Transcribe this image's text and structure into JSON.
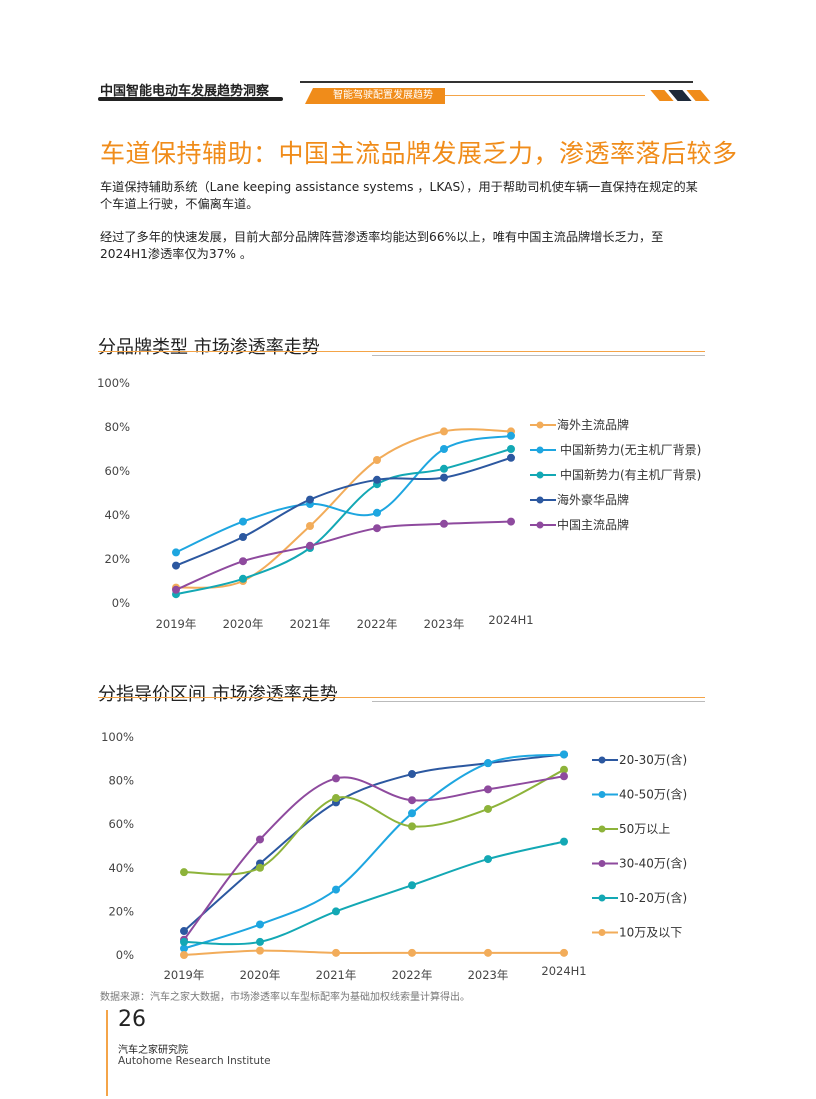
{
  "header": {
    "report_title": "中国智能电动车发展趋势洞察",
    "section_tag": "智能驾驶配置发展趋势"
  },
  "title": "车道保持辅助：中国主流品牌发展乏力，渗透率落后较多",
  "paragraphs": [
    "车道保持辅助系统（Lane keeping assistance systems ，LKAS），用于帮助司机使车辆一直保持在规定的某个车道上行驶，不偏离车道。",
    "经过了多年的快速发展，目前大部分品牌阵营渗透率均能达到66%以上，唯有中国主流品牌增长乏力，至2024H1渗透率仅为37% 。"
  ],
  "chart_data": [
    {
      "type": "line",
      "title": "分品牌类型  市场渗透率走势",
      "categories": [
        "2019年",
        "2020年",
        "2021年",
        "2022年",
        "2023年",
        "2024H1"
      ],
      "ylim": [
        0,
        100
      ],
      "yticks": [
        "0%",
        "20%",
        "40%",
        "60%",
        "80%",
        "100%"
      ],
      "legend": "right",
      "series": [
        {
          "name": "海外主流品牌",
          "color": "#f2ac5a",
          "values": [
            7,
            10,
            35,
            65,
            78,
            78
          ]
        },
        {
          "name": "中国新势力(无主机厂背景)",
          "color": "#1ea6e0",
          "values": [
            23,
            37,
            45,
            41,
            70,
            76
          ]
        },
        {
          "name": "中国新势力(有主机厂背景)",
          "color": "#13a8b4",
          "values": [
            4,
            11,
            25,
            54,
            61,
            70
          ]
        },
        {
          "name": "海外豪华品牌",
          "color": "#2c58a0",
          "values": [
            17,
            30,
            47,
            56,
            57,
            66
          ]
        },
        {
          "name": "中国主流品牌",
          "color": "#8e4a9e",
          "values": [
            6,
            19,
            26,
            34,
            36,
            37
          ]
        }
      ]
    },
    {
      "type": "line",
      "title": "分指导价区间  市场渗透率走势",
      "categories": [
        "2019年",
        "2020年",
        "2021年",
        "2022年",
        "2023年",
        "2024H1"
      ],
      "ylim": [
        0,
        100
      ],
      "yticks": [
        "0%",
        "20%",
        "40%",
        "60%",
        "80%",
        "100%"
      ],
      "legend": "right",
      "series": [
        {
          "name": "20-30万(含)",
          "color": "#2c58a0",
          "values": [
            11,
            42,
            70,
            83,
            88,
            92
          ]
        },
        {
          "name": "40-50万(含)",
          "color": "#1ea6e0",
          "values": [
            3,
            14,
            30,
            65,
            88,
            92
          ]
        },
        {
          "name": "50万以上",
          "color": "#8db33a",
          "values": [
            38,
            40,
            72,
            59,
            67,
            85
          ]
        },
        {
          "name": "30-40万(含)",
          "color": "#8e4a9e",
          "values": [
            7,
            53,
            81,
            71,
            76,
            82
          ]
        },
        {
          "name": "10-20万(含)",
          "color": "#13a8b4",
          "values": [
            6,
            6,
            20,
            32,
            44,
            52
          ]
        },
        {
          "name": "10万及以下",
          "color": "#f2ac5a",
          "values": [
            0,
            2,
            1,
            1,
            1,
            1
          ]
        }
      ]
    }
  ],
  "source": "数据来源：汽车之家大数据，市场渗透率以车型标配率为基础加权线索量计算得出。",
  "footer": {
    "page": "26",
    "org_cn": "汽车之家研究院",
    "org_en": "Autohome Research Institute"
  }
}
